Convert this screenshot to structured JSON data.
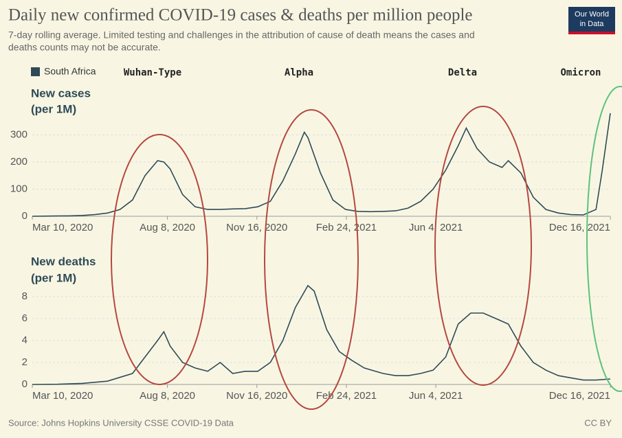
{
  "title": "Daily new confirmed COVID-19 cases & deaths per million people",
  "subtitle_lines": [
    "7-day rolling average. Limited testing and challenges in the attribution of cause of death means the cases and",
    "deaths counts may not be accurate."
  ],
  "logo_lines": [
    "Our World",
    "in Data"
  ],
  "annotations": [
    "Wuhan-Type",
    "Alpha",
    "Delta",
    "Omicron"
  ],
  "source": "Source: Johns Hopkins University CSSE COVID-19 Data",
  "license": "CC BY",
  "chart_data": [
    {
      "type": "line",
      "y_label_lines": [
        "New cases",
        "(per 1M)"
      ],
      "grid": true,
      "xlim": [
        "2020-03-10",
        "2021-12-16"
      ],
      "xticks": [
        {
          "value": "2020-03-10",
          "label": "Mar 10, 2020"
        },
        {
          "value": "2020-08-08",
          "label": "Aug 8, 2020"
        },
        {
          "value": "2020-11-16",
          "label": "Nov 16, 2020"
        },
        {
          "value": "2021-02-24",
          "label": "Feb 24, 2021"
        },
        {
          "value": "2021-06-04",
          "label": "Jun 4, 2021"
        },
        {
          "value": "2021-12-16",
          "label": "Dec 16, 2021"
        }
      ],
      "ylim": [
        0,
        400
      ],
      "yticks": [
        0,
        100,
        200,
        300
      ],
      "x": [
        "2020-03-10",
        "2020-03-24",
        "2020-04-07",
        "2020-04-21",
        "2020-05-05",
        "2020-05-19",
        "2020-06-02",
        "2020-06-16",
        "2020-06-30",
        "2020-07-14",
        "2020-07-28",
        "2020-08-04",
        "2020-08-11",
        "2020-08-25",
        "2020-09-08",
        "2020-09-22",
        "2020-10-06",
        "2020-10-20",
        "2020-11-03",
        "2020-11-17",
        "2020-12-01",
        "2020-12-15",
        "2020-12-29",
        "2021-01-08",
        "2021-01-12",
        "2021-01-26",
        "2021-02-09",
        "2021-02-23",
        "2021-03-09",
        "2021-03-23",
        "2021-04-06",
        "2021-04-20",
        "2021-05-04",
        "2021-05-18",
        "2021-06-01",
        "2021-06-15",
        "2021-06-29",
        "2021-07-08",
        "2021-07-20",
        "2021-08-03",
        "2021-08-17",
        "2021-08-24",
        "2021-09-07",
        "2021-09-21",
        "2021-10-05",
        "2021-10-19",
        "2021-11-02",
        "2021-11-16",
        "2021-11-30",
        "2021-12-07",
        "2021-12-16"
      ],
      "series": [
        {
          "name": "South Africa",
          "color": "#2e4a57",
          "values": [
            0,
            0.5,
            1,
            1.5,
            3,
            6,
            12,
            25,
            60,
            150,
            205,
            200,
            175,
            80,
            35,
            25,
            25,
            27,
            28,
            35,
            55,
            130,
            230,
            310,
            290,
            160,
            60,
            25,
            18,
            17,
            18,
            20,
            30,
            55,
            100,
            170,
            260,
            325,
            250,
            200,
            180,
            205,
            160,
            70,
            25,
            12,
            6,
            5,
            25,
            170,
            380
          ]
        }
      ]
    },
    {
      "type": "line",
      "y_label_lines": [
        "New deaths",
        "(per 1M)"
      ],
      "grid": true,
      "xlim": [
        "2020-03-10",
        "2021-12-16"
      ],
      "xticks": [
        {
          "value": "2020-03-10",
          "label": "Mar 10, 2020"
        },
        {
          "value": "2020-08-08",
          "label": "Aug 8, 2020"
        },
        {
          "value": "2020-11-16",
          "label": "Nov 16, 2020"
        },
        {
          "value": "2021-02-24",
          "label": "Feb 24, 2021"
        },
        {
          "value": "2021-06-04",
          "label": "Jun 4, 2021"
        },
        {
          "value": "2021-12-16",
          "label": "Dec 16, 2021"
        }
      ],
      "ylim": [
        0,
        10
      ],
      "yticks": [
        0,
        2,
        4,
        6,
        8
      ],
      "x": [
        "2020-03-10",
        "2020-04-07",
        "2020-05-05",
        "2020-06-02",
        "2020-06-30",
        "2020-07-14",
        "2020-07-28",
        "2020-08-04",
        "2020-08-11",
        "2020-08-25",
        "2020-09-08",
        "2020-09-22",
        "2020-10-06",
        "2020-10-20",
        "2020-11-03",
        "2020-11-17",
        "2020-12-01",
        "2020-12-15",
        "2020-12-29",
        "2021-01-12",
        "2021-01-19",
        "2021-02-02",
        "2021-02-16",
        "2021-03-02",
        "2021-03-16",
        "2021-04-06",
        "2021-04-20",
        "2021-05-04",
        "2021-05-18",
        "2021-06-01",
        "2021-06-15",
        "2021-06-29",
        "2021-07-13",
        "2021-07-27",
        "2021-08-10",
        "2021-08-24",
        "2021-09-07",
        "2021-09-21",
        "2021-10-05",
        "2021-10-19",
        "2021-11-02",
        "2021-11-16",
        "2021-11-30",
        "2021-12-16"
      ],
      "series": [
        {
          "name": "South Africa",
          "color": "#2e4a57",
          "values": [
            0,
            0.02,
            0.1,
            0.3,
            1,
            2.5,
            4,
            4.8,
            3.5,
            2,
            1.5,
            1.2,
            2,
            1,
            1.2,
            1.2,
            2,
            4,
            7,
            9,
            8.5,
            5,
            3,
            2.2,
            1.5,
            1,
            0.8,
            0.8,
            1,
            1.3,
            2.5,
            5.5,
            6.5,
            6.5,
            6,
            5.5,
            3.5,
            2,
            1.3,
            0.8,
            0.6,
            0.4,
            0.4,
            0.5
          ]
        }
      ]
    }
  ]
}
